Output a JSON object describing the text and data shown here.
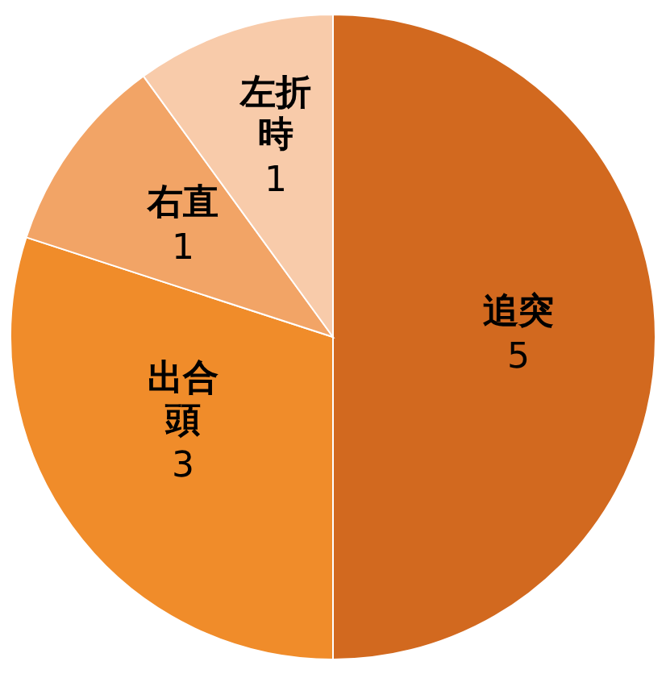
{
  "chart_data": {
    "type": "pie",
    "categories": [
      "追突",
      "出合頭",
      "右直",
      "左折時"
    ],
    "values": [
      5,
      3,
      1,
      1
    ],
    "colors": [
      "#d2691f",
      "#f08c2a",
      "#f2a466",
      "#f8cbaa"
    ],
    "data_labels": true
  }
}
